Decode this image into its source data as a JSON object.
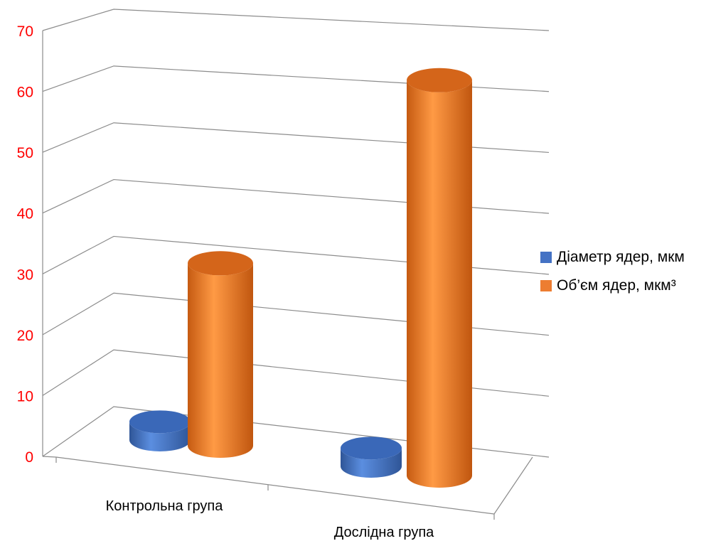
{
  "chart_data": {
    "type": "bar",
    "style": "3d-cylinder",
    "categories": [
      "Контрольна група",
      "Дослідна група"
    ],
    "series": [
      {
        "name": "Діаметр ядер, мкм",
        "values": [
          3,
          3
        ],
        "color": "#4472c4"
      },
      {
        "name": "Об’єм ядер, мкм³",
        "values": [
          30,
          65
        ],
        "color": "#ed7d31"
      }
    ],
    "ylim": [
      0,
      70
    ],
    "yticks": [
      "0",
      "10",
      "20",
      "30",
      "40",
      "50",
      "60",
      "70"
    ],
    "ytick_color": "#ff0000",
    "grid": true,
    "legend_position": "right",
    "title": "",
    "xlabel": "",
    "ylabel": ""
  }
}
